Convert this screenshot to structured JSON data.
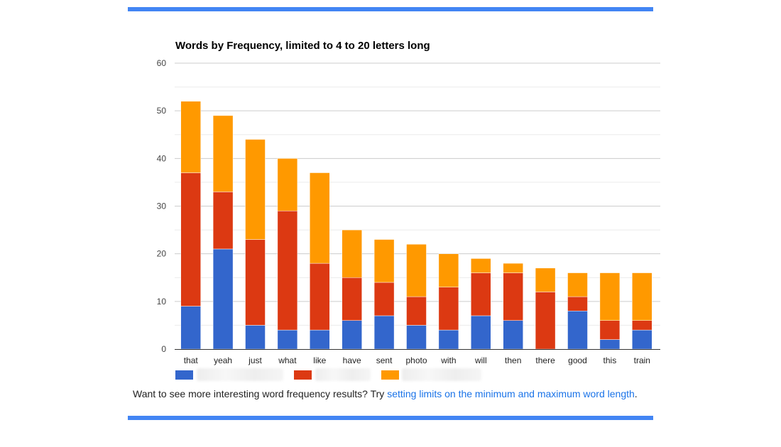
{
  "colors": {
    "rule": "#4285f4",
    "series": [
      "#3366cc",
      "#dc3912",
      "#ff9900"
    ],
    "link": "#1a73e8",
    "grid": "#cccccc",
    "minor_grid": "#ebebeb",
    "axis": "#333333"
  },
  "chart_data": {
    "type": "bar",
    "stacked": true,
    "title": "Words by Frequency, limited to 4 to 20 letters long",
    "xlabel": "",
    "ylabel": "",
    "ylim": [
      0,
      60
    ],
    "yticks": [
      0,
      10,
      20,
      30,
      40,
      50,
      60
    ],
    "grid": true,
    "legend": "bottom",
    "categories": [
      "that",
      "yeah",
      "just",
      "what",
      "like",
      "have",
      "sent",
      "photo",
      "with",
      "will",
      "then",
      "there",
      "good",
      "this",
      "train"
    ],
    "series": [
      {
        "values": [
          9,
          21,
          5,
          4,
          4,
          6,
          7,
          5,
          4,
          7,
          6,
          0,
          8,
          2,
          4
        ]
      },
      {
        "values": [
          28,
          12,
          18,
          25,
          14,
          9,
          7,
          6,
          9,
          9,
          10,
          12,
          3,
          4,
          2
        ]
      },
      {
        "values": [
          15,
          16,
          21,
          11,
          19,
          10,
          9,
          11,
          7,
          3,
          2,
          5,
          5,
          10,
          10
        ]
      }
    ]
  },
  "footer": {
    "text_before": "Want to see more interesting word frequency results? Try ",
    "link_text": "setting limits on the minimum and maximum word length",
    "text_after": "."
  }
}
